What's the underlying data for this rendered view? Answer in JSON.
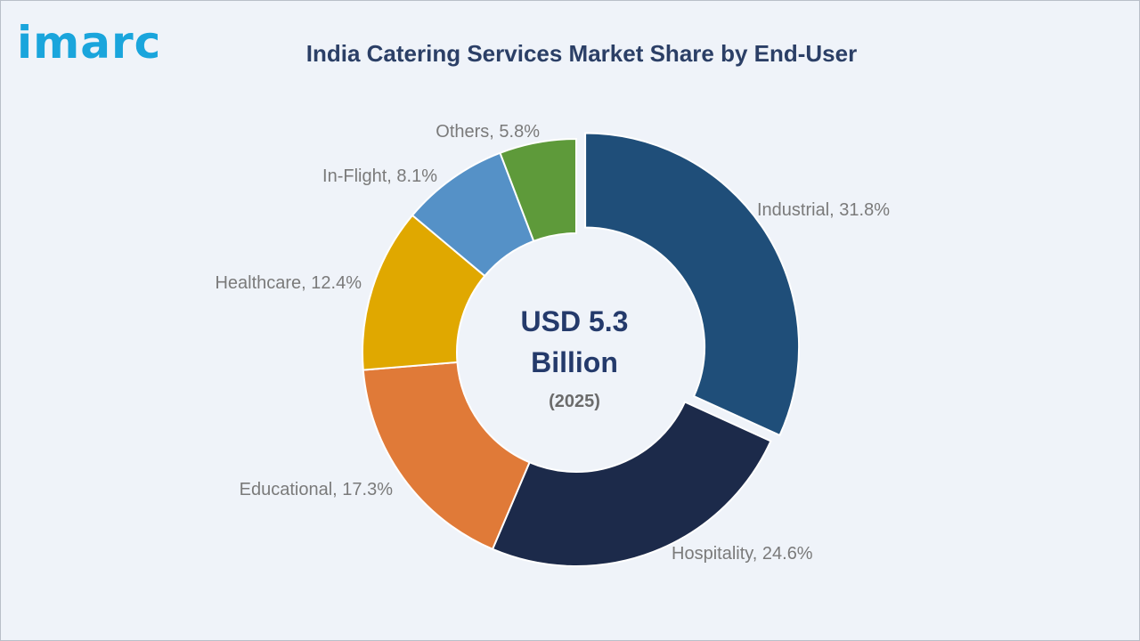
{
  "brand": {
    "logo_text": "imarc"
  },
  "chart_data": {
    "type": "pie",
    "variant": "donut",
    "title": "India Catering Services Market Share by End-User",
    "center": {
      "line1": "USD 5.3",
      "line2": "Billion",
      "line3": "(2025)"
    },
    "categories": [
      "Industrial",
      "Hospitality",
      "Educational",
      "Healthcare",
      "In-Flight",
      "Others"
    ],
    "values": [
      31.8,
      24.6,
      17.3,
      12.4,
      8.1,
      5.8
    ],
    "unit": "%",
    "labels": [
      "Industrial, 31.8%",
      "Hospitality, 24.6%",
      "Educational, 17.3%",
      "Healthcare, 12.4%",
      "In-Flight, 8.1%",
      "Others, 5.8%"
    ],
    "colors": [
      "#1f4e79",
      "#1c2a4a",
      "#e07a38",
      "#e0a800",
      "#5591c7",
      "#5e9a3a"
    ],
    "exploded": "Industrial",
    "legend": "none"
  }
}
